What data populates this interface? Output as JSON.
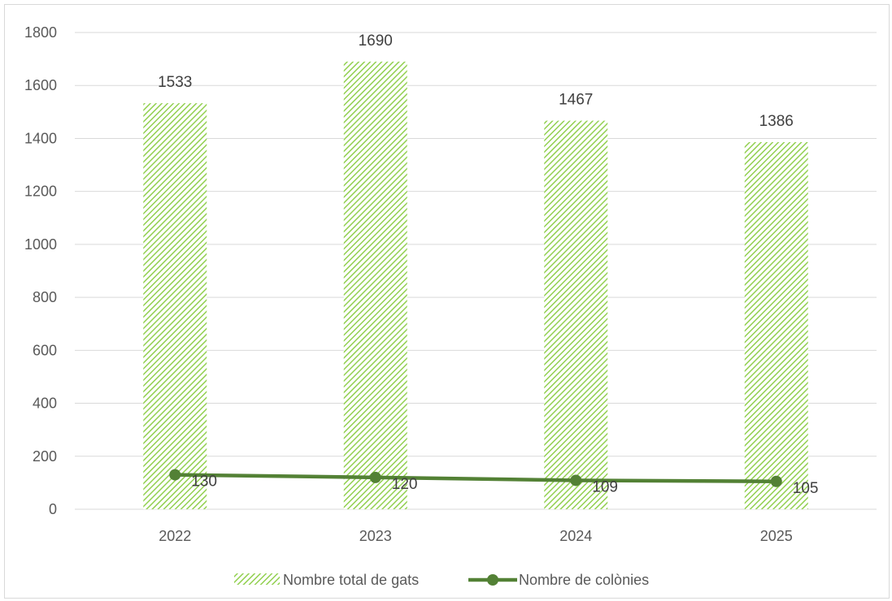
{
  "chart_data": {
    "type": "bar",
    "categories": [
      "2022",
      "2023",
      "2024",
      "2025"
    ],
    "ylim": [
      0,
      1800
    ],
    "yticks": [
      0,
      200,
      400,
      600,
      800,
      1000,
      1200,
      1400,
      1600,
      1800
    ],
    "grid": true,
    "legend_position": "bottom",
    "series": [
      {
        "name": "Nombre total de gats",
        "type": "bar",
        "values": [
          1533,
          1690,
          1467,
          1386
        ],
        "color": "#92d050"
      },
      {
        "name": "Nombre de colònies",
        "type": "line",
        "values": [
          130,
          120,
          109,
          105
        ],
        "color": "#538135"
      }
    ]
  }
}
